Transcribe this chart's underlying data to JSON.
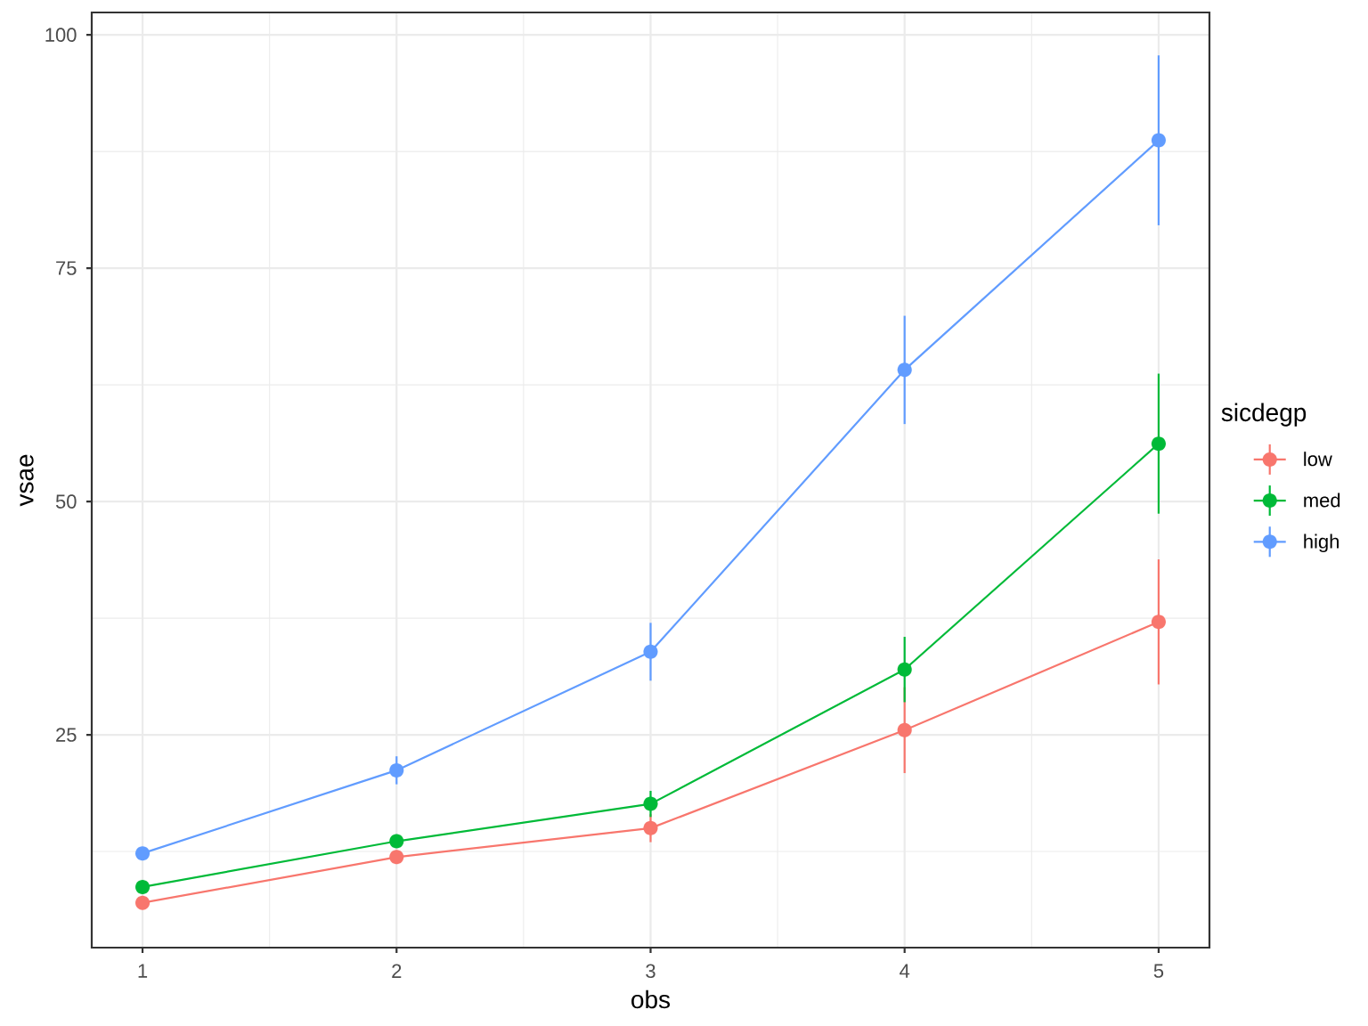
{
  "chart_data": {
    "type": "line",
    "xlabel": "obs",
    "ylabel": "vsae",
    "legend_title": "sicdegp",
    "x": [
      1,
      2,
      3,
      4,
      5
    ],
    "xlim": [
      0.8,
      5.2
    ],
    "ylim": [
      2.2,
      102.4
    ],
    "xticks": [
      1,
      2,
      3,
      4,
      5
    ],
    "yticks": [
      25,
      50,
      75,
      100
    ],
    "grid": true,
    "legend": "right",
    "marker": "circle",
    "line_style": "solid",
    "series": [
      {
        "name": "low",
        "color": "#f8766d",
        "values": [
          7.0,
          11.9,
          15.0,
          25.5,
          37.1
        ],
        "errors": [
          null,
          null,
          1.5,
          4.6,
          6.7
        ]
      },
      {
        "name": "med",
        "color": "#00ba38",
        "values": [
          8.7,
          13.6,
          17.6,
          32.0,
          56.2
        ],
        "errors": [
          null,
          null,
          1.4,
          3.5,
          7.5
        ]
      },
      {
        "name": "high",
        "color": "#619cff",
        "values": [
          12.3,
          21.2,
          33.9,
          64.1,
          88.7
        ],
        "errors": [
          null,
          1.5,
          3.1,
          5.8,
          9.1
        ]
      }
    ]
  }
}
